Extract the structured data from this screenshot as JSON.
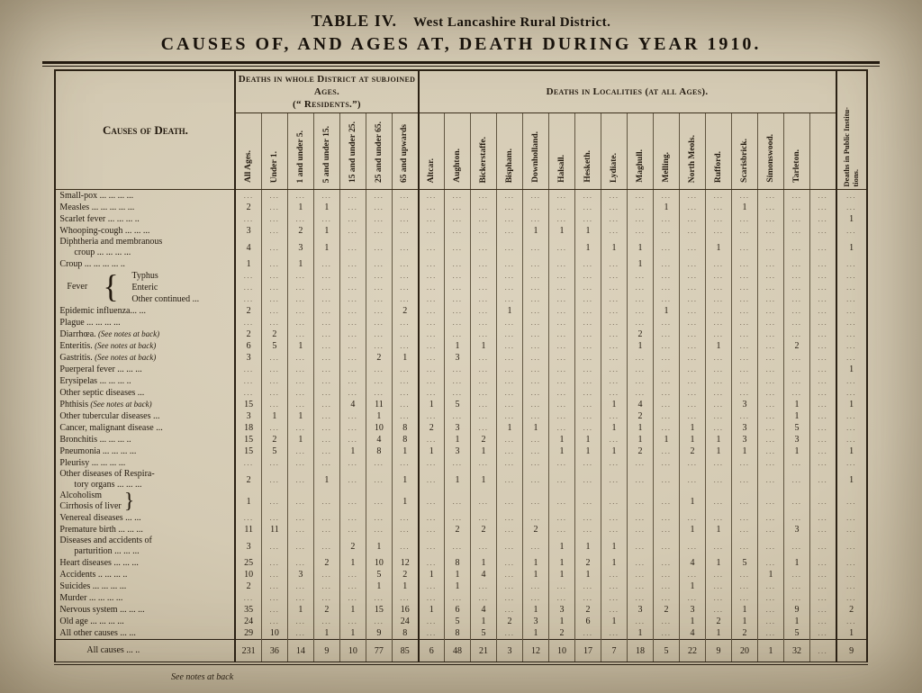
{
  "colors": {
    "paper": "#d4cab3",
    "ink": "#241b10",
    "rule": "#2b2114"
  },
  "page": {
    "title_prefix": "TABLE IV.",
    "title_district": "West Lancashire Rural District.",
    "title_main": "CAUSES OF, AND AGES AT, DEATH DURING YEAR 1910.",
    "footer_note": "See notes at back"
  },
  "table": {
    "corner_header": "Causes of Death.",
    "ages_group_header": "Deaths in whole District at subjoined\nAges.\n(“ Residents.”)",
    "localities_group_header": "Deaths in Localities (at all Ages).",
    "pi_header_l1": "Deaths in Public Institu-",
    "pi_header_l2": "tions.",
    "fever_group_label": "Fever",
    "brace_open": "{",
    "brace_close": "}",
    "age_headers": [
      "All Ages.",
      "Under 1.",
      "1 and under 5.",
      "5 and under 15.",
      "15 and under 25.",
      "25 and under 65.",
      "65 and upwards"
    ],
    "locality_headers": [
      "Altcar.",
      "Aughton.",
      "Bickerstaffe.",
      "Bispham.",
      "Downholland.",
      "Halsall.",
      "Hesketh.",
      "Lydiate.",
      "Maghull.",
      "Melling.",
      "North Meols.",
      "Rufford.",
      "Scarisbrick.",
      "Simonswood.",
      "Tarleton.",
      ""
    ],
    "totals_label": "All causes ... ..",
    "rows": [
      {
        "label": "Small-pox ... ... ... ..."
      },
      {
        "label": "Measles ... ... ... ... ...",
        "cells": [
          "2",
          "",
          "1",
          "1",
          "",
          "",
          "",
          "",
          "",
          "",
          "",
          "",
          "",
          "",
          "",
          "",
          "1",
          "",
          "",
          "1",
          "",
          "",
          "",
          ""
        ]
      },
      {
        "label": "Scarlet fever ... ... ... ..",
        "cells": [
          "",
          "",
          "",
          "",
          "",
          "",
          "",
          "",
          "",
          "",
          "",
          "",
          "",
          "",
          "",
          "",
          "",
          "",
          "",
          "",
          "",
          "",
          "",
          "1"
        ]
      },
      {
        "label": "Whooping-cough ... ... ...",
        "cells": [
          "3",
          "",
          "2",
          "1",
          "",
          "",
          "",
          "",
          "",
          "",
          "",
          "1",
          "1",
          "1",
          "",
          "",
          "",
          "",
          "",
          "",
          "",
          "",
          "",
          ""
        ]
      },
      {
        "label": "Diphtheria and membranous\ncroup ... ... ... ...",
        "class": "tall",
        "cells": [
          "4",
          "",
          "3",
          "1",
          "",
          "",
          "",
          "",
          "",
          "",
          "",
          "",
          "",
          "1",
          "1",
          "1",
          "",
          "",
          "1",
          "",
          "",
          "",
          "",
          "1"
        ]
      },
      {
        "label": "Croup ... ... ... ... ..",
        "cells": [
          "1",
          "",
          "1",
          "",
          "",
          "",
          "",
          "",
          "",
          "",
          "",
          "",
          "",
          "",
          "",
          "1",
          "",
          "",
          "",
          "",
          "",
          "",
          "",
          ""
        ]
      },
      {
        "label": "Typhus",
        "class": "fever-first"
      },
      {
        "label": "Enteric",
        "class": "fever-item"
      },
      {
        "label": "Other continued ...",
        "class": "fever-item"
      },
      {
        "label": "Epidemic influenza... ...",
        "cells": [
          "2",
          "",
          "",
          "",
          "",
          "",
          "2",
          "",
          "",
          "",
          "1",
          "",
          "",
          "",
          "",
          "",
          "1",
          "",
          "",
          "",
          "",
          "",
          "",
          ""
        ]
      },
      {
        "label": "Plague ... ... ... ..."
      },
      {
        "label": "Diarrhœa.",
        "note": "(See notes at back)",
        "cells": [
          "2",
          "2",
          "",
          "",
          "",
          "",
          "",
          "",
          "",
          "",
          "",
          "",
          "",
          "",
          "",
          "2",
          "",
          "",
          "",
          "",
          "",
          "",
          "",
          ""
        ]
      },
      {
        "label": "Enteritis.",
        "note": "(See notes at back)",
        "cells": [
          "6",
          "5",
          "1",
          "",
          "",
          "",
          "",
          "",
          "1",
          "1",
          "",
          "",
          "",
          "",
          "",
          "1",
          "",
          "",
          "1",
          "",
          "",
          "2",
          "",
          ""
        ]
      },
      {
        "label": "Gastritis.",
        "note": "(See notes at back)",
        "cells": [
          "3",
          "",
          "",
          "",
          "",
          "2",
          "1",
          "",
          "3",
          "",
          "",
          "",
          "",
          "",
          "",
          "",
          "",
          "",
          "",
          "",
          "",
          "",
          "",
          ""
        ]
      },
      {
        "label": "Puerperal fever ... ... ...",
        "cells": [
          "",
          "",
          "",
          "",
          "",
          "",
          "",
          "",
          "",
          "",
          "",
          "",
          "",
          "",
          "",
          "",
          "",
          "",
          "",
          "",
          "",
          "",
          "",
          "1"
        ]
      },
      {
        "label": "Erysipelas ... ... ... .."
      },
      {
        "label": "Other septic diseases ..."
      },
      {
        "label": "Phthisis",
        "note": "(See notes at back)",
        "cells": [
          "15",
          "",
          "",
          "",
          "4",
          "11",
          "",
          "1",
          "5",
          "",
          "",
          "",
          "",
          "",
          "1",
          "4",
          "",
          "",
          "",
          "3",
          "",
          "1",
          "",
          "1"
        ]
      },
      {
        "label": "Other tubercular diseases ...",
        "cells": [
          "3",
          "1",
          "1",
          "",
          "",
          "1",
          "",
          "",
          "",
          "",
          "",
          "",
          "",
          "",
          "",
          "2",
          "",
          "",
          "",
          "",
          "",
          "1",
          "",
          ""
        ]
      },
      {
        "label": "Cancer, malignant disease ...",
        "cells": [
          "18",
          "",
          "",
          "",
          "",
          "10",
          "8",
          "2",
          "3",
          "",
          "1",
          "1",
          "",
          "",
          "1",
          "1",
          "",
          "1",
          "",
          "3",
          "",
          "5",
          "",
          ""
        ]
      },
      {
        "label": "Bronchitis ... ... ... ..",
        "cells": [
          "15",
          "2",
          "1",
          "",
          "",
          "4",
          "8",
          "",
          "1",
          "2",
          "",
          "",
          "1",
          "1",
          "",
          "1",
          "1",
          "1",
          "1",
          "3",
          "",
          "3",
          "",
          ""
        ]
      },
      {
        "label": "Pneumonia ... ... ... ...",
        "cells": [
          "15",
          "5",
          "",
          "",
          "1",
          "8",
          "1",
          "1",
          "3",
          "1",
          "",
          "",
          "1",
          "1",
          "1",
          "2",
          "",
          "2",
          "1",
          "1",
          "",
          "1",
          "",
          "1"
        ]
      },
      {
        "label": "Pleurisy ... ... ... ..."
      },
      {
        "label": "Other diseases of Respira-\ntory organs ... ... ...",
        "class": "tall",
        "cells": [
          "2",
          "",
          "",
          "1",
          "",
          "",
          "1",
          "",
          "1",
          "1",
          "",
          "",
          "",
          "",
          "",
          "",
          "",
          "",
          "",
          "",
          "",
          "",
          "",
          "1"
        ]
      },
      {
        "label": "Alcoholism\nCirrhosis of liver",
        "brace2": true,
        "class": "tall",
        "cells": [
          "1",
          "",
          "",
          "",
          "",
          "",
          "1",
          "",
          "",
          "",
          "",
          "",
          "",
          "",
          "",
          "",
          "",
          "1",
          "",
          "",
          "",
          "",
          "",
          ""
        ]
      },
      {
        "label": "Venereal diseases ... ..."
      },
      {
        "label": "Premature birth ... ... ...",
        "cells": [
          "11",
          "11",
          "",
          "",
          "",
          "",
          "",
          "",
          "2",
          "2",
          "",
          "2",
          "",
          "",
          "",
          "",
          "",
          "1",
          "1",
          "",
          "",
          "3",
          "",
          ""
        ]
      },
      {
        "label": "Diseases and accidents of\nparturition ... ... ...",
        "class": "tall",
        "cells": [
          "3",
          "",
          "",
          "",
          "2",
          "1",
          "",
          "",
          "",
          "",
          "",
          "",
          "1",
          "1",
          "1",
          "",
          "",
          "",
          "",
          "",
          "",
          "",
          "",
          ""
        ]
      },
      {
        "label": "Heart diseases ... ... ...",
        "cells": [
          "25",
          "",
          "",
          "2",
          "1",
          "10",
          "12",
          "",
          "8",
          "1",
          "",
          "1",
          "1",
          "2",
          "1",
          "",
          "",
          "4",
          "1",
          "5",
          "",
          "1",
          "",
          ""
        ]
      },
      {
        "label": "Accidents .. ... ... ..",
        "cells": [
          "10",
          "",
          "3",
          "",
          "",
          "5",
          "2",
          "1",
          "1",
          "4",
          "",
          "1",
          "1",
          "1",
          "",
          "",
          "",
          "",
          "",
          "",
          "1",
          "",
          "",
          ""
        ]
      },
      {
        "label": "Suicides ... ... ... ...",
        "cells": [
          "2",
          "",
          "",
          "",
          "",
          "1",
          "1",
          "",
          "1",
          "",
          "",
          "",
          "",
          "",
          "",
          "",
          "",
          "1",
          "",
          "",
          "",
          "",
          "",
          ""
        ]
      },
      {
        "label": "Murder ... ... ... ..."
      },
      {
        "label": "Nervous system ... ... ...",
        "cells": [
          "35",
          "",
          "1",
          "2",
          "1",
          "15",
          "16",
          "1",
          "6",
          "4",
          "",
          "1",
          "3",
          "2",
          "",
          "3",
          "2",
          "3",
          "",
          "1",
          "",
          "9",
          "",
          "2"
        ]
      },
      {
        "label": "Old age ... ... ... ...",
        "cells": [
          "24",
          "",
          "",
          "",
          "",
          "",
          "24",
          "",
          "5",
          "1",
          "2",
          "3",
          "1",
          "6",
          "1",
          "",
          "",
          "1",
          "2",
          "1",
          "",
          "1",
          "",
          ""
        ]
      },
      {
        "label": "All other causes ... ...",
        "cells": [
          "29",
          "10",
          "",
          "1",
          "1",
          "9",
          "8",
          "",
          "8",
          "5",
          "",
          "1",
          "2",
          "",
          "",
          "1",
          "",
          "4",
          "1",
          "2",
          "",
          "5",
          "",
          "1"
        ]
      }
    ],
    "totals": [
      "231",
      "36",
      "14",
      "9",
      "10",
      "77",
      "85",
      "6",
      "48",
      "21",
      "3",
      "12",
      "10",
      "17",
      "7",
      "18",
      "5",
      "22",
      "9",
      "20",
      "1",
      "32",
      "",
      "9"
    ]
  }
}
